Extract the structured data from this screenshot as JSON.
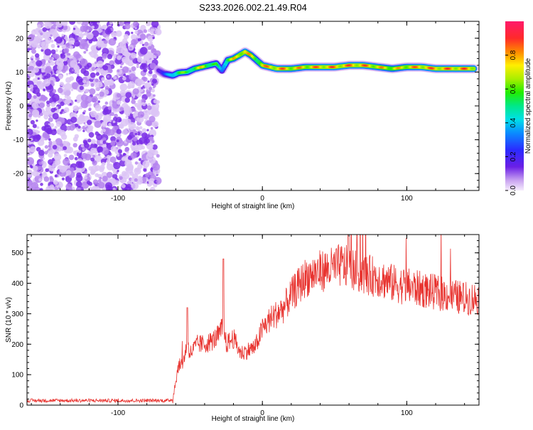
{
  "title": "S233.2026.002.21.49.R04",
  "chart_data": [
    {
      "type": "heatmap",
      "xlabel": "Height of straight line (km)",
      "ylabel": "Frequency (Hz)",
      "xlim": [
        -163,
        150
      ],
      "ylim": [
        -25,
        25
      ],
      "x_ticks": [
        -100,
        0,
        100
      ],
      "y_ticks": [
        -20,
        -10,
        0,
        10,
        20
      ],
      "colorbar": {
        "label": "Normalized spectral amplitude",
        "range": [
          0,
          1
        ],
        "ticks": [
          "0.0",
          "0.2",
          "0.4",
          "0.6",
          "0.8"
        ]
      },
      "noise_region": {
        "x_start": -163,
        "x_end": -72,
        "amplitude": 0.1
      },
      "ridge": {
        "x": [
          -72,
          -68,
          -62,
          -58,
          -52,
          -47,
          -42,
          -37,
          -32,
          -28,
          -24,
          -20,
          -16,
          -12,
          -8,
          -4,
          0,
          10,
          20,
          30,
          40,
          50,
          60,
          70,
          80,
          90,
          100,
          110,
          120,
          130,
          140,
          147
        ],
        "frequency": [
          10.5,
          9.5,
          9.0,
          9.8,
          10.0,
          11.0,
          11.5,
          12.0,
          12.5,
          10.5,
          13.5,
          14.0,
          15.0,
          16.0,
          15.0,
          13.5,
          12.0,
          11.0,
          11.0,
          11.5,
          11.5,
          11.5,
          12.0,
          12.0,
          11.5,
          11.0,
          11.5,
          11.5,
          11.0,
          11.0,
          11.0,
          11.0
        ],
        "amplitude": [
          0.2,
          0.3,
          0.5,
          0.7,
          0.6,
          0.7,
          0.8,
          0.7,
          0.6,
          0.4,
          0.7,
          0.8,
          0.85,
          0.9,
          0.8,
          0.7,
          0.85,
          0.9,
          0.85,
          0.85,
          0.9,
          0.9,
          0.9,
          0.9,
          0.85,
          0.8,
          0.85,
          0.9,
          0.9,
          0.9,
          0.9,
          0.9
        ]
      }
    },
    {
      "type": "line",
      "xlabel": "Height of straight line (km)",
      "ylabel": "SNR (10 * v/v)",
      "xlim": [
        -163,
        150
      ],
      "ylim": [
        0,
        560
      ],
      "x_ticks": [
        -100,
        0,
        100
      ],
      "y_ticks": [
        0,
        100,
        200,
        300,
        400,
        500
      ],
      "series": [
        {
          "color": "#e8332f",
          "x": [
            -163,
            -140,
            -120,
            -100,
            -80,
            -65,
            -62,
            -60,
            -58,
            -55,
            -52,
            -50,
            -45,
            -40,
            -35,
            -30,
            -27,
            -25,
            -20,
            -15,
            -10,
            -5,
            0,
            5,
            10,
            15,
            20,
            25,
            30,
            35,
            40,
            50,
            55,
            60,
            65,
            70,
            80,
            90,
            100,
            110,
            120,
            130,
            140,
            150
          ],
          "y": [
            15,
            15,
            15,
            15,
            15,
            15,
            20,
            80,
            130,
            140,
            200,
            170,
            200,
            200,
            210,
            230,
            260,
            200,
            220,
            170,
            180,
            190,
            250,
            280,
            300,
            320,
            360,
            390,
            420,
            430,
            440,
            450,
            460,
            450,
            440,
            430,
            420,
            400,
            390,
            380,
            370,
            360,
            350,
            350
          ]
        }
      ]
    }
  ]
}
